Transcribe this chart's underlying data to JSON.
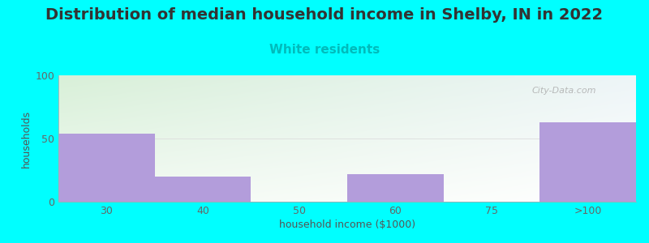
{
  "title": "Distribution of median household income in Shelby, IN in 2022",
  "subtitle": "White residents",
  "xlabel": "household income ($1000)",
  "ylabel": "households",
  "background_color": "#00FFFF",
  "bar_color": "#b39ddb",
  "bar_edge_color": "#b39ddb",
  "categories": [
    "30",
    "40",
    "50",
    "60",
    "75",
    ">100"
  ],
  "values": [
    54,
    20,
    0,
    22,
    0,
    63
  ],
  "ylim": [
    0,
    100
  ],
  "yticks": [
    0,
    50,
    100
  ],
  "title_fontsize": 14,
  "subtitle_fontsize": 11,
  "axis_label_fontsize": 9,
  "tick_fontsize": 9,
  "title_color": "#333333",
  "subtitle_color": "#00BBBB",
  "axis_label_color": "#555555",
  "tick_color": "#666666",
  "watermark": "City-Data.com",
  "gradient_tl": [
    0.847,
    0.941,
    0.847
  ],
  "gradient_tr": [
    0.93,
    0.96,
    0.97
  ],
  "gradient_bl": [
    0.95,
    0.98,
    0.95
  ],
  "gradient_br": [
    1.0,
    1.0,
    1.0
  ]
}
